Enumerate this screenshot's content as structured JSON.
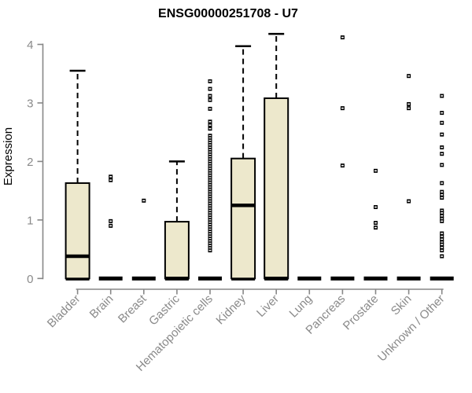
{
  "chart_data": {
    "type": "boxplot",
    "title": "ENSG00000251708 - U7",
    "ylabel": "Expression",
    "xlabel": "",
    "ylim": [
      0,
      4
    ],
    "yticks": [
      0,
      1,
      2,
      3,
      4
    ],
    "grid": false,
    "legend": null,
    "colors": {
      "box_fill": "#EDE8CC",
      "box_stroke": "#000000",
      "median_color": "#000000",
      "outlier_color": "#000000",
      "axis_color": "#878787",
      "tick_label_color": "#8A8A8A",
      "title_color": "#000000"
    },
    "categories": [
      {
        "label": "Bladder",
        "q1": 0,
        "median": 0.38,
        "q3": 1.63,
        "whisker_low": 0,
        "whisker_high": 3.55,
        "outliers": []
      },
      {
        "label": "Brain",
        "q1": 0,
        "median": 0,
        "q3": 0,
        "whisker_low": 0,
        "whisker_high": 0,
        "outliers": [
          1.74,
          1.68,
          0.98,
          0.9
        ]
      },
      {
        "label": "Breast",
        "q1": 0,
        "median": 0,
        "q3": 0,
        "whisker_low": 0,
        "whisker_high": 0,
        "outliers": [
          1.33
        ]
      },
      {
        "label": "Gastric",
        "q1": 0,
        "median": 0,
        "q3": 0.97,
        "whisker_low": 0,
        "whisker_high": 2.0,
        "outliers": []
      },
      {
        "label": "Hematopoietic cells",
        "q1": 0,
        "median": 0,
        "q3": 0,
        "whisker_low": 0,
        "whisker_high": 0,
        "outliers": [
          3.37,
          3.24,
          3.12,
          3.05,
          2.9,
          2.68,
          2.62,
          2.56,
          2.44,
          2.4,
          2.36,
          2.32,
          2.28,
          2.24,
          2.2,
          2.16,
          2.12,
          2.08,
          2.04,
          2.0,
          1.96,
          1.92,
          1.88,
          1.84,
          1.8,
          1.76,
          1.72,
          1.68,
          1.64,
          1.6,
          1.56,
          1.52,
          1.48,
          1.44,
          1.4,
          1.36,
          1.32,
          1.28,
          1.24,
          1.2,
          1.16,
          1.12,
          1.08,
          1.04,
          1.0,
          0.96,
          0.92,
          0.88,
          0.84,
          0.8,
          0.76,
          0.72,
          0.68,
          0.64,
          0.6,
          0.56,
          0.52,
          0.48
        ]
      },
      {
        "label": "Kidney",
        "q1": 0,
        "median": 1.25,
        "q3": 2.05,
        "whisker_low": 0,
        "whisker_high": 3.97,
        "outliers": []
      },
      {
        "label": "Liver",
        "q1": 0,
        "median": 0,
        "q3": 3.08,
        "whisker_low": 0,
        "whisker_high": 4.18,
        "outliers": []
      },
      {
        "label": "Lung",
        "q1": 0,
        "median": 0,
        "q3": 0,
        "whisker_low": 0,
        "whisker_high": 0,
        "outliers": []
      },
      {
        "label": "Pancreas",
        "q1": 0,
        "median": 0,
        "q3": 0,
        "whisker_low": 0,
        "whisker_high": 0,
        "outliers": [
          4.12,
          2.91,
          1.93
        ]
      },
      {
        "label": "Prostate",
        "q1": 0,
        "median": 0,
        "q3": 0,
        "whisker_low": 0,
        "whisker_high": 0,
        "outliers": [
          1.84,
          1.22,
          0.95,
          0.87
        ]
      },
      {
        "label": "Skin",
        "q1": 0,
        "median": 0,
        "q3": 0,
        "whisker_low": 0,
        "whisker_high": 0,
        "outliers": [
          3.46,
          2.98,
          2.91,
          1.32
        ]
      },
      {
        "label": "Unknown / Other",
        "q1": 0,
        "median": 0,
        "q3": 0,
        "whisker_low": 0,
        "whisker_high": 0,
        "outliers": [
          3.12,
          2.83,
          2.66,
          2.46,
          2.24,
          2.13,
          1.94,
          1.63,
          1.48,
          1.43,
          1.38,
          1.16,
          1.12,
          1.07,
          1.02,
          0.98,
          0.77,
          0.72,
          0.67,
          0.62,
          0.58,
          0.53,
          0.48,
          0.38
        ]
      }
    ]
  }
}
